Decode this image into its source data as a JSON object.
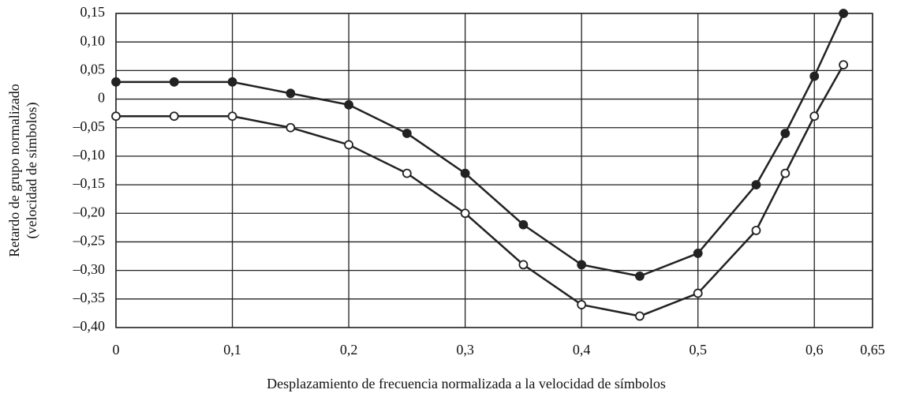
{
  "chart_data": {
    "type": "line",
    "x_label": "Desplazamiento de frecuencia normalizada a la velocidad de símbolos",
    "y_label": [
      "Retardo de grupo normalizado",
      "(velocidad de símbolos)"
    ],
    "x": [
      0,
      0.05,
      0.1,
      0.15,
      0.2,
      0.25,
      0.3,
      0.35,
      0.4,
      0.45,
      0.5,
      0.55,
      0.575,
      0.6,
      0.625
    ],
    "series": [
      {
        "color": "#222",
        "marker_fill": "#222",
        "values": [
          0.03,
          0.03,
          0.03,
          0.01,
          -0.01,
          -0.06,
          -0.13,
          -0.22,
          -0.29,
          -0.31,
          -0.27,
          -0.15,
          -0.06,
          0.04,
          0.15
        ]
      },
      {
        "color": "#222",
        "marker_fill": "#fff",
        "values": [
          -0.03,
          -0.03,
          -0.03,
          -0.05,
          -0.08,
          -0.13,
          -0.2,
          -0.29,
          -0.36,
          -0.38,
          -0.34,
          -0.23,
          -0.13,
          -0.03,
          0.06
        ]
      }
    ],
    "xlim": [
      0,
      0.65
    ],
    "ylim": [
      -0.4,
      0.15
    ],
    "xticks": [
      0,
      {
        "value": 0.1,
        "label": "0,1"
      },
      {
        "value": 0.2,
        "label": "0,2"
      },
      {
        "value": 0.3,
        "label": "0,3"
      },
      {
        "value": 0.4,
        "label": "0,4"
      },
      {
        "value": 0.5,
        "label": "0,5"
      },
      {
        "value": 0.6,
        "label": "0,6"
      },
      {
        "value": 0.65,
        "label": "0,65"
      }
    ],
    "yticks": [
      {
        "value": 0.15,
        "label": "0,15"
      },
      {
        "value": 0.1,
        "label": "0,10"
      },
      {
        "value": 0.05,
        "label": "0,05"
      },
      0,
      {
        "value": -0.05,
        "label": "–0,05"
      },
      {
        "value": -0.1,
        "label": "–0,10"
      },
      {
        "value": -0.15,
        "label": "–0,15"
      },
      {
        "value": -0.2,
        "label": "–0,20"
      },
      {
        "value": -0.25,
        "label": "–0,25"
      },
      {
        "value": -0.3,
        "label": "–0,30"
      },
      {
        "value": -0.35,
        "label": "–0,35"
      },
      {
        "value": -0.4,
        "label": "–0,40"
      }
    ],
    "grid": true
  }
}
